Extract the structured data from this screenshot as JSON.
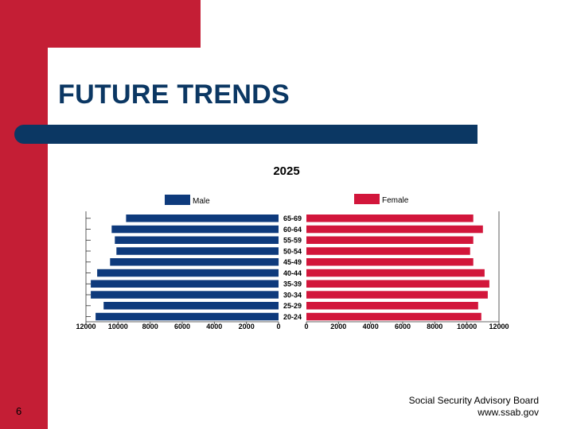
{
  "slide": {
    "title": "FUTURE TRENDS",
    "page_number": "6",
    "footer_line1": "Social Security Advisory Board",
    "footer_line2": "www.ssab.gov"
  },
  "colors": {
    "accent_red": "#C41E35",
    "navy": "#0B3763",
    "male_bar": "#0E3A7C",
    "female_bar": "#D2163B"
  },
  "chart_data": {
    "type": "bar",
    "orientation": "horizontal",
    "layout": "population-pyramid",
    "title": "2025",
    "xlabel": "",
    "ylabel": "",
    "categories": [
      "65-69",
      "60-64",
      "55-59",
      "50-54",
      "45-49",
      "40-44",
      "35-39",
      "30-34",
      "25-29",
      "20-24"
    ],
    "series": [
      {
        "name": "Male",
        "values": [
          9500,
          10400,
          10200,
          10100,
          10500,
          11300,
          11700,
          11700,
          10900,
          11400
        ]
      },
      {
        "name": "Female",
        "values": [
          10400,
          11000,
          10400,
          10200,
          10400,
          11100,
          11400,
          11300,
          10700,
          10900
        ]
      }
    ],
    "xlim": [
      0,
      12000
    ],
    "ticks": [
      "12000",
      "10000",
      "8000",
      "6000",
      "4000",
      "2000",
      "0",
      "0",
      "2000",
      "4000",
      "6000",
      "8000",
      "10000",
      "12000"
    ],
    "legend_position": "top",
    "grid": false
  }
}
